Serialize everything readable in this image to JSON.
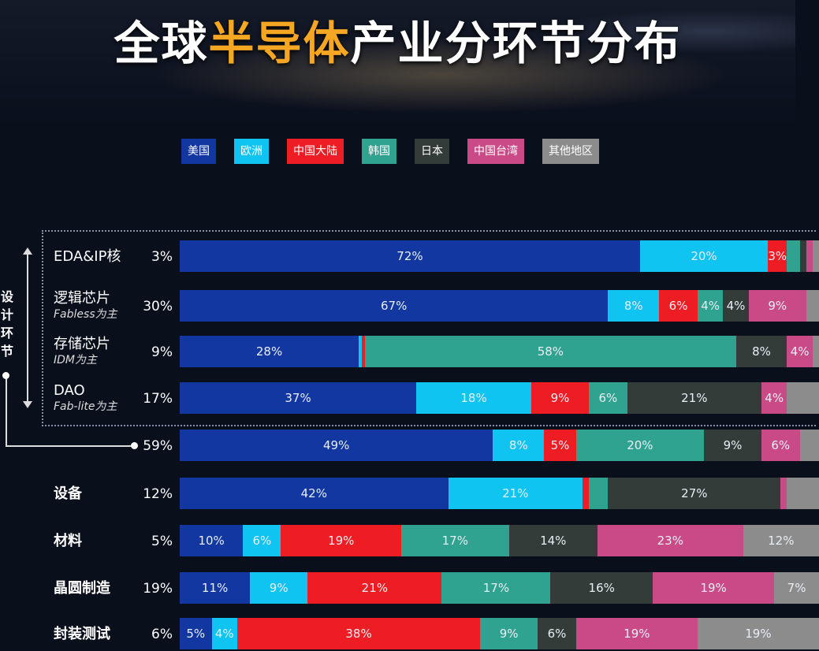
{
  "title": {
    "pre": "全球",
    "highlight": "半导体",
    "post": "产业分环节分布"
  },
  "chart_data": {
    "type": "bar",
    "stacked": true,
    "orientation": "horizontal",
    "title": "全球半导体产业分环节分布",
    "legend_position": "top",
    "series": [
      {
        "name": "美国",
        "color": "#1237a0"
      },
      {
        "name": "欧洲",
        "color": "#10c4f2"
      },
      {
        "name": "中国大陆",
        "color": "#ee1d23"
      },
      {
        "name": "韩国",
        "color": "#2fa38f"
      },
      {
        "name": "日本",
        "color": "#343c3a"
      },
      {
        "name": "中国台湾",
        "color": "#c94a86"
      },
      {
        "name": "其他地区",
        "color": "#8c8c8c"
      }
    ],
    "group_label": "设计环节",
    "rows": [
      {
        "name": "EDA&IP核",
        "sub": "",
        "share": "3%",
        "values": [
          72,
          20,
          3,
          2,
          1,
          1,
          1
        ],
        "labels": [
          "72%",
          "20%",
          "3%",
          "",
          "",
          "",
          ""
        ]
      },
      {
        "name": "逻辑芯片",
        "sub": "Fabless为主",
        "share": "30%",
        "values": [
          67,
          8,
          6,
          4,
          4,
          9,
          2
        ],
        "labels": [
          "67%",
          "8%",
          "6%",
          "4%",
          "4%",
          "9%",
          ""
        ]
      },
      {
        "name": "存储芯片",
        "sub": "IDM为主",
        "share": "9%",
        "values": [
          28,
          0.5,
          0.5,
          58,
          8,
          4,
          1
        ],
        "labels": [
          "28%",
          "",
          "",
          "58%",
          "8%",
          "4%",
          ""
        ]
      },
      {
        "name": "DAO",
        "sub": "Fab-lite为主",
        "share": "17%",
        "values": [
          37,
          18,
          9,
          6,
          21,
          4,
          5
        ],
        "labels": [
          "37%",
          "18%",
          "9%",
          "6%",
          "21%",
          "4%",
          ""
        ]
      },
      {
        "name": "",
        "sub": "",
        "share": "59%",
        "values": [
          49,
          8,
          5,
          20,
          9,
          6,
          3
        ],
        "labels": [
          "49%",
          "8%",
          "5%",
          "20%",
          "9%",
          "6%",
          ""
        ]
      },
      {
        "name": "设备",
        "sub": "",
        "share": "12%",
        "values": [
          42,
          21,
          1,
          3,
          27,
          1,
          5
        ],
        "labels": [
          "42%",
          "21%",
          "",
          "",
          "27%",
          "",
          ""
        ]
      },
      {
        "name": "材料",
        "sub": "",
        "share": "5%",
        "values": [
          10,
          6,
          19,
          17,
          14,
          23,
          12
        ],
        "labels": [
          "10%",
          "6%",
          "19%",
          "17%",
          "14%",
          "23%",
          "12%"
        ]
      },
      {
        "name": "晶圆制造",
        "sub": "",
        "share": "19%",
        "values": [
          11,
          9,
          21,
          17,
          16,
          19,
          7
        ],
        "labels": [
          "11%",
          "9%",
          "21%",
          "17%",
          "16%",
          "19%",
          "7%"
        ]
      },
      {
        "name": "封装测试",
        "sub": "",
        "share": "6%",
        "values": [
          5,
          4,
          38,
          9,
          6,
          19,
          19
        ],
        "labels": [
          "5%",
          "4%",
          "38%",
          "9%",
          "6%",
          "19%",
          "19%"
        ]
      }
    ],
    "xlim": [
      0,
      100
    ]
  }
}
